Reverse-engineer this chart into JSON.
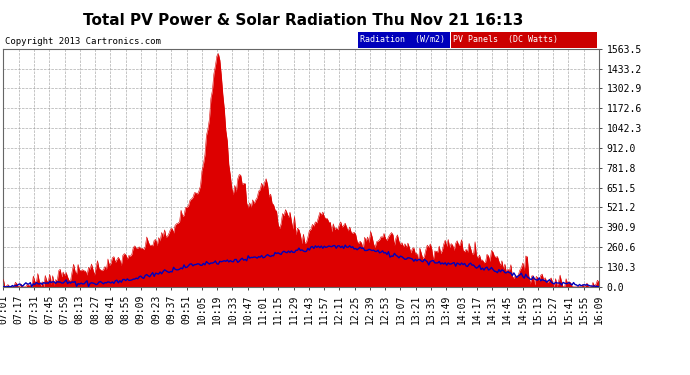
{
  "title": "Total PV Power & Solar Radiation Thu Nov 21 16:13",
  "copyright": "Copyright 2013 Cartronics.com",
  "legend_items": [
    {
      "label": "Radiation  (W/m2)",
      "bg": "#0000bb",
      "fg": "#ffffff"
    },
    {
      "label": "PV Panels  (DC Watts)",
      "bg": "#cc0000",
      "fg": "#ffffff"
    }
  ],
  "yticks": [
    0.0,
    130.3,
    260.6,
    390.9,
    521.2,
    651.5,
    781.8,
    912.0,
    1042.3,
    1172.6,
    1302.9,
    1433.2,
    1563.5
  ],
  "ymax": 1563.5,
  "ymin": 0.0,
  "background_color": "#ffffff",
  "grid_color": "#999999",
  "red_color": "#dd0000",
  "blue_color": "#0000bb",
  "title_fontsize": 11,
  "copyright_fontsize": 6.5,
  "tick_fontsize": 7,
  "time_labels": [
    "07:01",
    "07:17",
    "07:31",
    "07:45",
    "07:59",
    "08:13",
    "08:27",
    "08:41",
    "08:55",
    "09:09",
    "09:23",
    "09:37",
    "09:51",
    "10:05",
    "10:19",
    "10:33",
    "10:47",
    "11:01",
    "11:15",
    "11:29",
    "11:43",
    "11:57",
    "12:11",
    "12:25",
    "12:39",
    "12:53",
    "13:07",
    "13:21",
    "13:35",
    "13:49",
    "14:03",
    "14:17",
    "14:31",
    "14:45",
    "14:59",
    "15:13",
    "15:27",
    "15:41",
    "15:55",
    "16:09"
  ]
}
